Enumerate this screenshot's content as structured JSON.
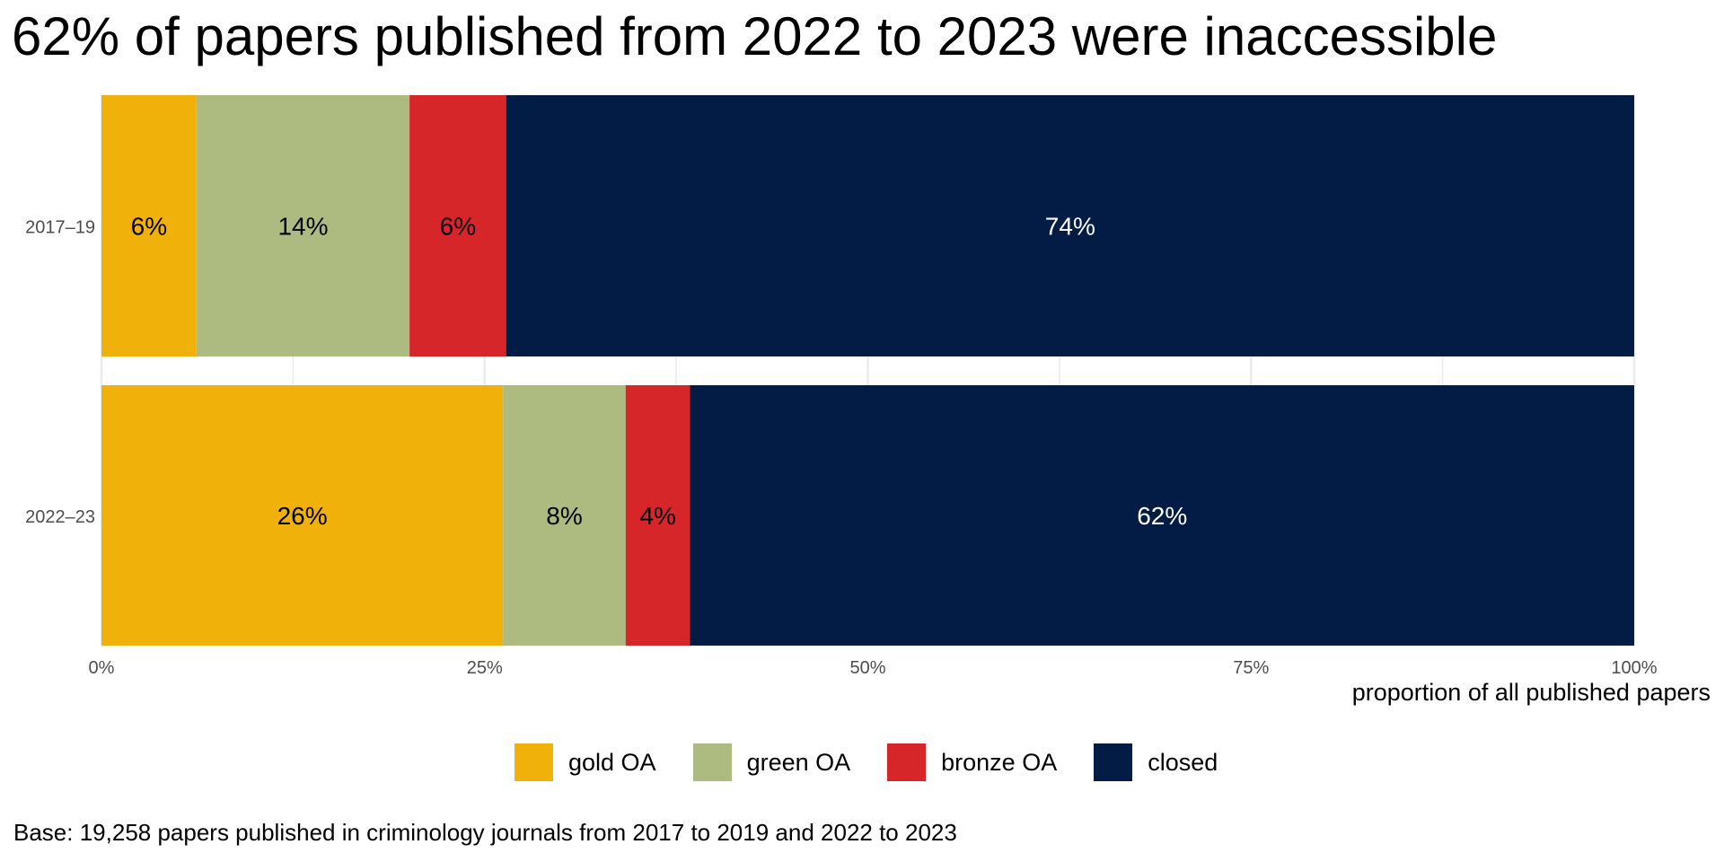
{
  "chart_data": {
    "type": "bar",
    "orientation": "horizontal",
    "stacked": true,
    "title": "62% of papers published from 2022 to 2023 were inaccessible",
    "xlabel": "proportion of all published papers",
    "ylabel": "",
    "xlim": [
      0,
      100
    ],
    "x_ticks": [
      "0%",
      "25%",
      "50%",
      "75%",
      "100%"
    ],
    "x_tick_values": [
      0,
      25,
      50,
      75,
      100
    ],
    "grid": true,
    "legend_position": "bottom",
    "categories": [
      "2017–19",
      "2022–23"
    ],
    "series": [
      {
        "name": "gold OA",
        "color": "#F1B10B",
        "label_color": "#000000",
        "values": [
          6.2,
          26.2
        ],
        "labels": [
          "6%",
          "26%"
        ]
      },
      {
        "name": "green OA",
        "color": "#ADBB80",
        "label_color": "#000000",
        "values": [
          13.9,
          8.0
        ],
        "labels": [
          "14%",
          "8%"
        ]
      },
      {
        "name": "bronze OA",
        "color": "#D72629",
        "label_color": "#000000",
        "values": [
          6.3,
          4.2
        ],
        "labels": [
          "6%",
          "4%"
        ]
      },
      {
        "name": "closed",
        "color": "#031C45",
        "label_color": "#FFFFFF",
        "values": [
          73.6,
          61.6
        ],
        "labels": [
          "74%",
          "62%"
        ]
      }
    ],
    "caption": "Base: 19,258 papers published in criminology journals from 2017 to 2019 and 2022 to 2023"
  }
}
